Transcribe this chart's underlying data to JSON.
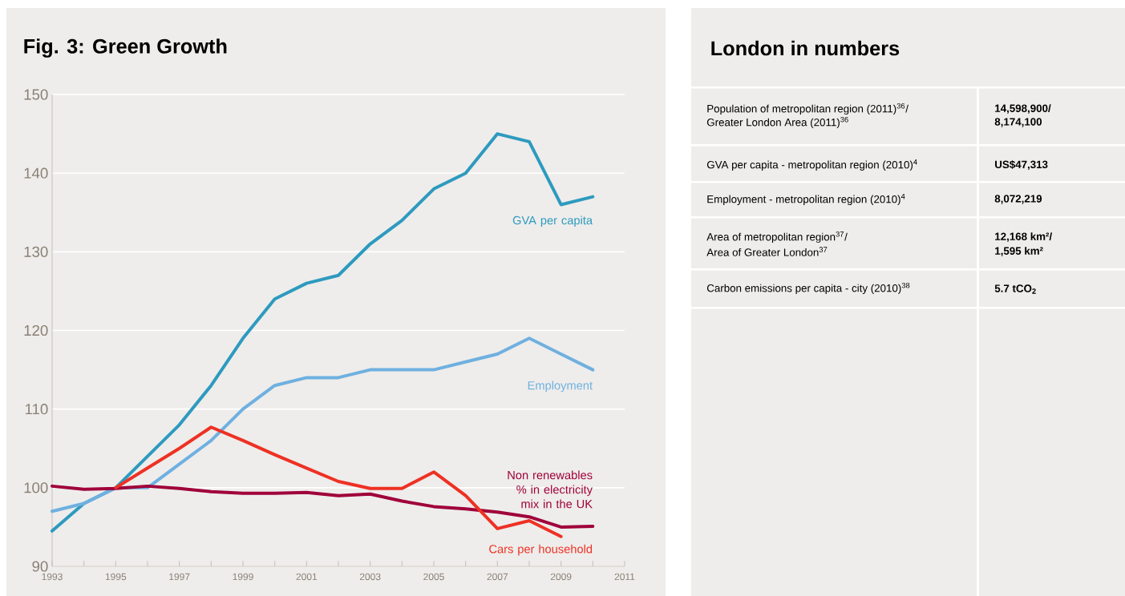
{
  "chart_data": [
    {
      "type": "line",
      "title": "Fig. 3: Green Growth",
      "x": [
        1993,
        1994,
        1995,
        1996,
        1997,
        1998,
        1999,
        2000,
        2001,
        2002,
        2003,
        2004,
        2005,
        2006,
        2007,
        2008,
        2009,
        2010
      ],
      "series": [
        {
          "name": "GVA per capita",
          "color": "#2e9abf",
          "values": [
            94.5,
            98,
            100,
            104,
            108,
            113,
            119,
            124,
            126,
            127,
            131,
            134,
            138,
            140,
            145,
            144,
            136,
            137
          ]
        },
        {
          "name": "Employment",
          "color": "#6fb0e0",
          "values": [
            97,
            98,
            100,
            100,
            103,
            106,
            110,
            113,
            114,
            114,
            115,
            115,
            115,
            116,
            117,
            119,
            117,
            115
          ]
        },
        {
          "name": "Non renewables % in electricity mix in the UK",
          "color": "#a0003a",
          "values": [
            100.2,
            99.8,
            99.9,
            100.2,
            99.9,
            99.5,
            99.3,
            99.3,
            99.4,
            99.0,
            99.2,
            98.3,
            97.6,
            97.3,
            96.9,
            96.3,
            95.0,
            95.1
          ]
        },
        {
          "name": "Cars per household",
          "color": "#ee3124",
          "values": [
            null,
            null,
            100,
            102.5,
            105,
            107.7,
            106,
            104.2,
            102.5,
            100.8,
            99.9,
            99.9,
            102,
            99,
            94.8,
            95.8,
            93.8,
            null
          ]
        }
      ],
      "xlim": [
        1993,
        2011
      ],
      "xticks": [
        1993,
        1995,
        1997,
        1999,
        2001,
        2003,
        2005,
        2007,
        2009,
        2011
      ],
      "ylim": [
        90,
        150
      ],
      "yticks": [
        90,
        100,
        110,
        120,
        130,
        140,
        150
      ],
      "grid": "y",
      "legend": false,
      "marker": "none",
      "line_style": "solid"
    },
    {
      "type": "other",
      "title": "London in numbers",
      "annotations": [
        "Population of metropolitan region (2011)$^{36}$/",
        "Greater London Area (2011)$^{36}$",
        "14,598,900/",
        "8,174,100",
        "GVA per capita - metropolitan region (2010)$^{4}$",
        "US$47,313",
        "Employment - metropolitan region (2010)$^{4}$",
        "8,072,219",
        "Area of metropolitan region$^{37}$/",
        "Area of Greater London$^{37}$",
        "12,168 km²/",
        "1,595 km²",
        "Carbon emissions per capita - city (2010)$^{38}$",
        "5.7 tCO$_{2}$"
      ]
    }
  ]
}
